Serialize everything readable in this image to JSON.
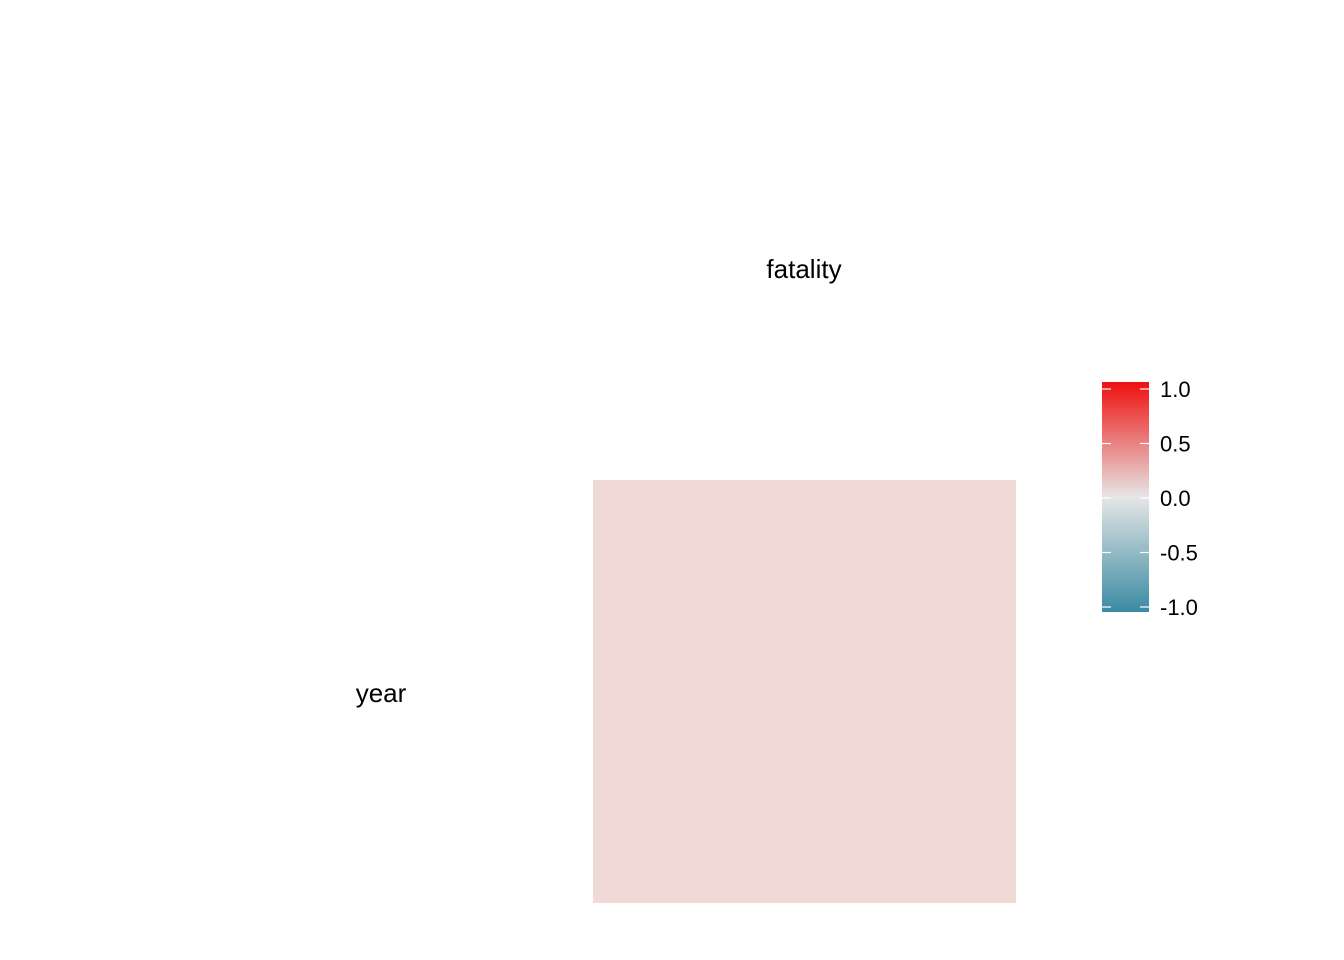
{
  "chart_data": {
    "type": "heatmap",
    "title": "",
    "xlabel": "",
    "ylabel": "",
    "x_categories": [
      "fatality"
    ],
    "y_categories": [
      "year"
    ],
    "cells": [
      {
        "x": "fatality",
        "y": "year",
        "value": 0.07,
        "color": "#F1DAD5"
      }
    ],
    "legend": {
      "placement": "right",
      "range": [
        -1.0,
        1.0
      ],
      "ticks": [
        1.0,
        0.5,
        0.0,
        -0.5,
        -1.0
      ],
      "tick_labels": [
        "1.0",
        "0.5",
        "0.0",
        "-0.5",
        "-1.0"
      ],
      "color_low": "#3A8AA3",
      "color_mid": "#E6E6E6",
      "color_high": "#EE1010"
    },
    "grid": false
  }
}
